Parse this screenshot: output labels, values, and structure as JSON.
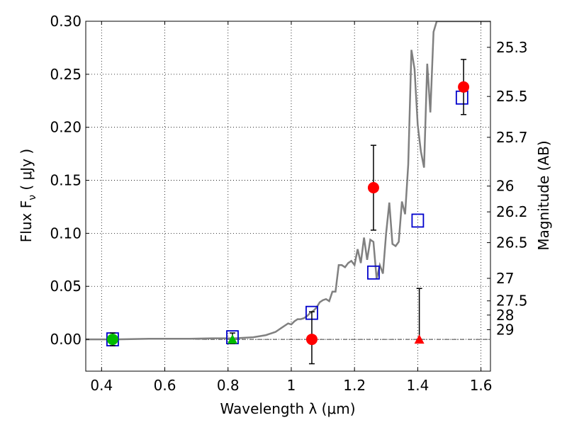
{
  "chart_data": {
    "type": "scatter",
    "xlabel": "Wavelength  λ (μm)",
    "ylabel": "Flux  F",
    "ylabel_sub": "ν",
    "ylabel_unit": " ( μJy )",
    "y2label": "Magnitude (AB)",
    "xlim": [
      0.35,
      1.63
    ],
    "ylim": [
      -0.03,
      0.3
    ],
    "grid": true,
    "x_ticks": [
      {
        "value": 0.4,
        "label": "0.4"
      },
      {
        "value": 0.6,
        "label": "0.6"
      },
      {
        "value": 0.8,
        "label": "0.8"
      },
      {
        "value": 1.0,
        "label": "1"
      },
      {
        "value": 1.2,
        "label": "1.2"
      },
      {
        "value": 1.4,
        "label": "1.4"
      },
      {
        "value": 1.6,
        "label": "1.6"
      }
    ],
    "y_ticks": [
      {
        "value": 0.0,
        "label": "0.00"
      },
      {
        "value": 0.05,
        "label": "0.05"
      },
      {
        "value": 0.1,
        "label": "0.10"
      },
      {
        "value": 0.15,
        "label": "0.15"
      },
      {
        "value": 0.2,
        "label": "0.20"
      },
      {
        "value": 0.25,
        "label": "0.25"
      },
      {
        "value": 0.3,
        "label": "0.30"
      }
    ],
    "y2_ticks": [
      {
        "value": 25.3,
        "label": "25.3"
      },
      {
        "value": 25.5,
        "label": "25.5"
      },
      {
        "value": 25.7,
        "label": "25.7"
      },
      {
        "value": 26,
        "label": "26"
      },
      {
        "value": 26.2,
        "label": "26.2"
      },
      {
        "value": 26.5,
        "label": "26.5"
      },
      {
        "value": 27,
        "label": "27"
      },
      {
        "value": 27.5,
        "label": "27.5"
      },
      {
        "value": 28,
        "label": "28"
      },
      {
        "value": 29,
        "label": "29"
      }
    ],
    "model_sed": {
      "color": "#808080",
      "x": [
        0.35,
        0.45,
        0.55,
        0.68,
        0.75,
        0.82,
        0.88,
        0.9,
        0.92,
        0.93,
        0.95,
        0.96,
        0.97,
        0.98,
        0.99,
        1.0,
        1.01,
        1.02,
        1.03,
        1.04,
        1.05,
        1.06,
        1.07,
        1.08,
        1.09,
        1.1,
        1.11,
        1.12,
        1.13,
        1.14,
        1.15,
        1.16,
        1.17,
        1.18,
        1.19,
        1.2,
        1.21,
        1.22,
        1.23,
        1.24,
        1.25,
        1.26,
        1.27,
        1.28,
        1.29,
        1.3,
        1.31,
        1.32,
        1.33,
        1.34,
        1.35,
        1.36,
        1.37,
        1.38,
        1.39,
        1.4,
        1.41,
        1.42,
        1.43,
        1.44,
        1.45,
        1.46,
        1.47,
        1.48,
        1.49,
        1.5,
        1.51,
        1.52,
        1.53,
        1.54,
        1.55,
        1.56,
        1.57,
        1.58,
        1.59,
        1.6,
        1.61,
        1.62,
        1.63
      ],
      "y": [
        0.0,
        0.0,
        0.0005,
        0.0005,
        0.001,
        0.001,
        0.002,
        0.003,
        0.004,
        0.005,
        0.007,
        0.009,
        0.011,
        0.013,
        0.015,
        0.014,
        0.017,
        0.019,
        0.019,
        0.02,
        0.022,
        0.025,
        0.027,
        0.03,
        0.035,
        0.037,
        0.038,
        0.036,
        0.045,
        0.045,
        0.07,
        0.07,
        0.068,
        0.072,
        0.074,
        0.07,
        0.085,
        0.072,
        0.096,
        0.075,
        0.094,
        0.092,
        0.057,
        0.07,
        0.062,
        0.1,
        0.129,
        0.09,
        0.088,
        0.092,
        0.13,
        0.118,
        0.165,
        0.273,
        0.255,
        0.202,
        0.177,
        0.162,
        0.26,
        0.214,
        0.29,
        0.3,
        0.3,
        0.3,
        0.3,
        0.3,
        0.3,
        0.3,
        0.3,
        0.3,
        0.3,
        0.3,
        0.3,
        0.3,
        0.3,
        0.3,
        0.3,
        0.3,
        0.3
      ]
    },
    "series": [
      {
        "marker": "square-open",
        "color": "#0000cc",
        "points": [
          {
            "x": 0.435,
            "y": 0.0
          },
          {
            "x": 0.814,
            "y": 0.002
          },
          {
            "x": 1.065,
            "y": 0.025
          },
          {
            "x": 1.26,
            "y": 0.063
          },
          {
            "x": 1.4,
            "y": 0.112
          },
          {
            "x": 1.54,
            "y": 0.228
          }
        ]
      },
      {
        "marker": "circle",
        "color": "#ff0000",
        "points": [
          {
            "x": 1.065,
            "y": 0.0,
            "err_low": 0.023,
            "err_high": 0.026
          },
          {
            "x": 1.26,
            "y": 0.143,
            "err_low": 0.04,
            "err_high": 0.04
          },
          {
            "x": 1.545,
            "y": 0.238,
            "err_low": 0.026,
            "err_high": 0.026
          }
        ]
      },
      {
        "marker": "circle",
        "color": "#00bb00",
        "points": [
          {
            "x": 0.435,
            "y": 0.0,
            "err_low": 0.006,
            "err_high": 0.006
          }
        ]
      },
      {
        "marker": "triangle",
        "color": "#00bb00",
        "points": [
          {
            "x": 0.814,
            "y": 0.0,
            "err_low": 0.004,
            "err_high": 0.006
          }
        ]
      },
      {
        "marker": "triangle",
        "color": "#ff0000",
        "points": [
          {
            "x": 1.405,
            "y": 0.0,
            "err_low": 0.0,
            "err_high": 0.048
          }
        ]
      }
    ]
  }
}
